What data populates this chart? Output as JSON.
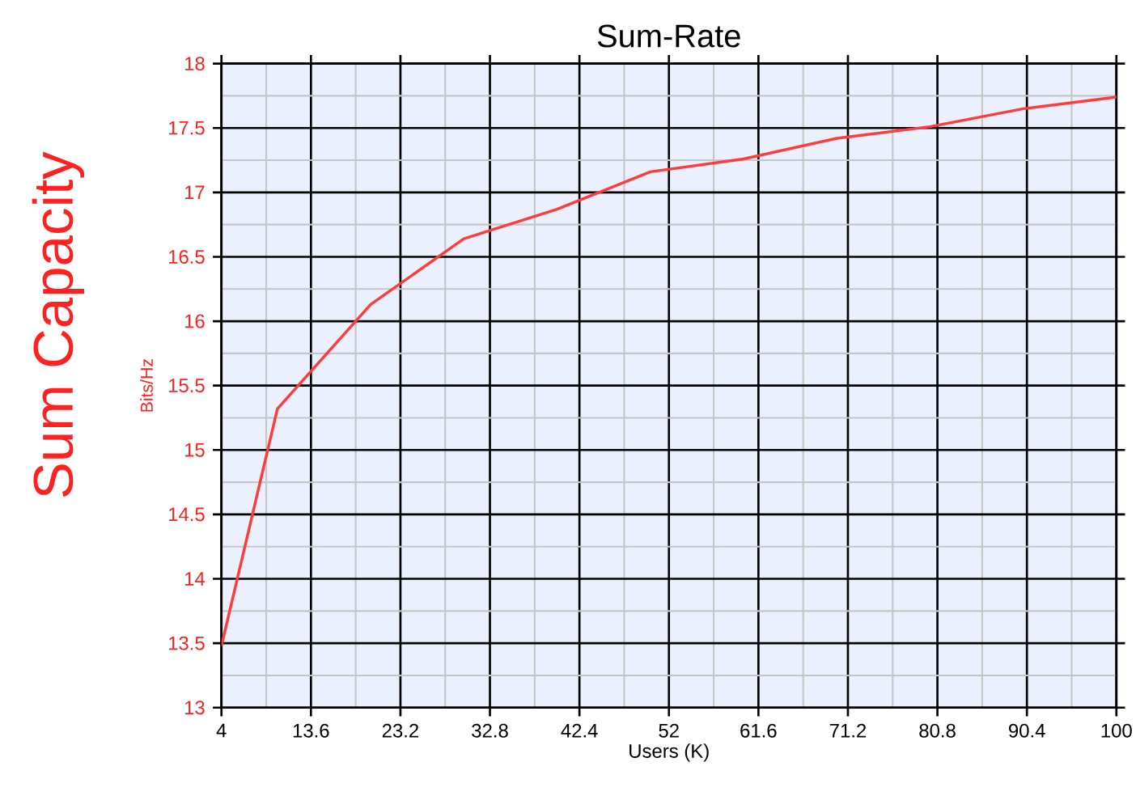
{
  "chart_data": {
    "type": "line",
    "title": "Sum-Rate",
    "xlabel": "Users (K)",
    "ylabel": "Bits/Hz",
    "annotations": [
      "Sum Capacity"
    ],
    "x": [
      4,
      10,
      20,
      30,
      40,
      50,
      60,
      70,
      80,
      90,
      100
    ],
    "series": [
      {
        "color": "#ff3b3b",
        "values": [
          13.48,
          15.32,
          16.13,
          16.64,
          16.87,
          17.16,
          17.26,
          17.42,
          17.51,
          17.65,
          17.74
        ]
      }
    ],
    "xlim": [
      4,
      100
    ],
    "xticks": [
      4,
      13.6,
      23.2,
      32.8,
      42.4,
      52,
      61.6,
      71.2,
      80.8,
      90.4,
      100
    ],
    "ylim": [
      13,
      18
    ],
    "yticks": [
      13,
      13.5,
      14,
      14.5,
      15,
      15.5,
      16,
      16.5,
      17,
      17.5,
      18
    ],
    "grid": true,
    "marker": "none",
    "line_style": "solid"
  }
}
